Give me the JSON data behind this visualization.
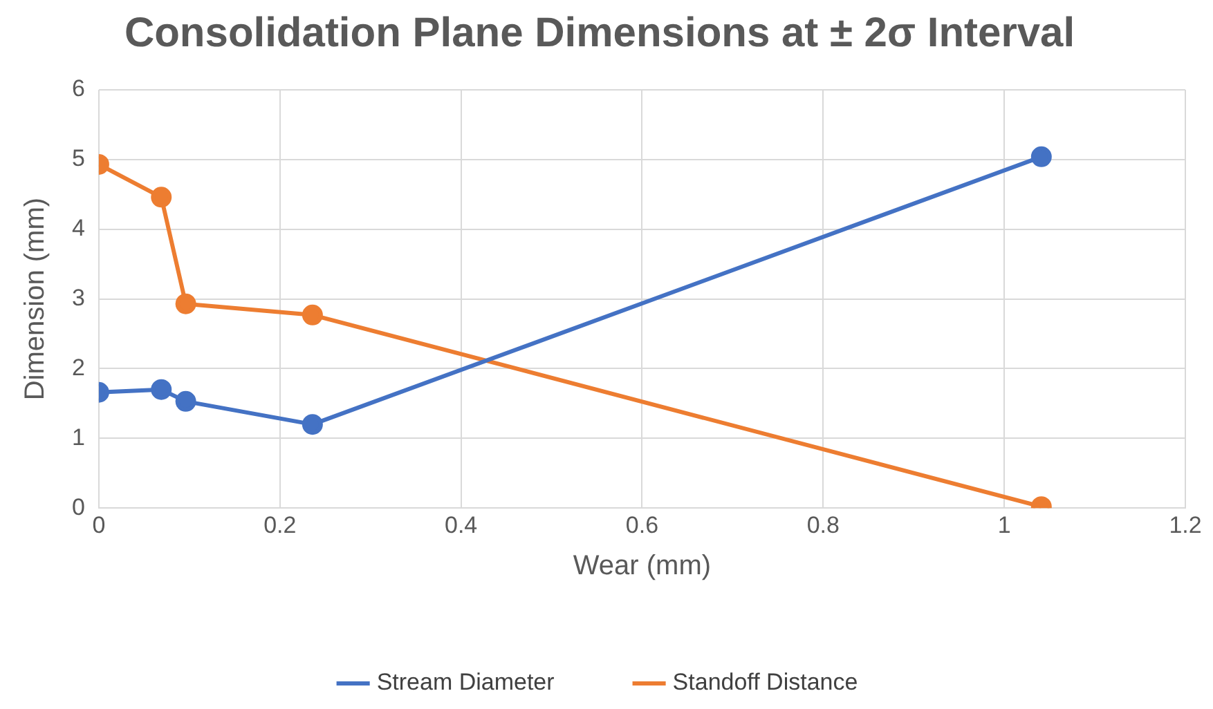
{
  "chart_data": {
    "type": "line",
    "title": "Consolidation Plane Dimensions at ± 2σ Interval",
    "xlabel": "Wear (mm)",
    "ylabel": "Dimension (mm)",
    "x": [
      0,
      0.069,
      0.096,
      0.236,
      1.041
    ],
    "series": [
      {
        "name": "Stream Diameter",
        "color": "#4472c4",
        "values": [
          1.66,
          1.7,
          1.53,
          1.2,
          5.04
        ]
      },
      {
        "name": "Standoff Distance",
        "color": "#ed7d31",
        "values": [
          4.93,
          4.46,
          2.93,
          2.77,
          0.02
        ]
      }
    ],
    "xlim": [
      0,
      1.2
    ],
    "xticks": [
      0,
      0.2,
      0.4,
      0.6,
      0.8,
      1,
      1.2
    ],
    "ylim": [
      0,
      6
    ],
    "yticks": [
      0,
      1,
      2,
      3,
      4,
      5,
      6
    ],
    "grid": true,
    "legend": "bottom",
    "marker": "circle",
    "line_style": "solid"
  }
}
